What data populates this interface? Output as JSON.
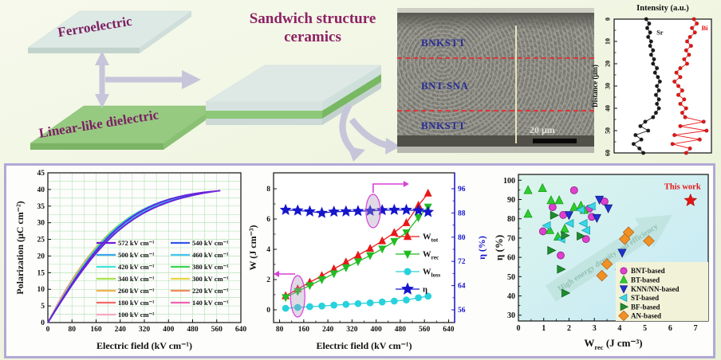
{
  "schematic": {
    "layer_top": "Ferroelectric",
    "layer_bottom": "Linear-like dielectric",
    "title_line1": "Sandwich structure",
    "title_line2": "ceramics"
  },
  "sem": {
    "labels": [
      "BNKSTT",
      "BNT-SNA",
      "BNKSTT"
    ],
    "scale_bar": "20 μm"
  },
  "chart_data": [
    {
      "id": "line_scan",
      "type": "line",
      "title": "Intensity (a.u.)",
      "ylabel": "Distance (μm)",
      "yticks": [
        0,
        10,
        20,
        30,
        40,
        50,
        60
      ],
      "ylim": [
        0,
        60
      ],
      "series": [
        {
          "name": "Sr",
          "color": "#1a1a1a",
          "points": [
            [
              0.33,
              0
            ],
            [
              0.36,
              2
            ],
            [
              0.34,
              4
            ],
            [
              0.37,
              6
            ],
            [
              0.35,
              8
            ],
            [
              0.38,
              10
            ],
            [
              0.37,
              12
            ],
            [
              0.4,
              14
            ],
            [
              0.38,
              16
            ],
            [
              0.41,
              18
            ],
            [
              0.4,
              20
            ],
            [
              0.44,
              22
            ],
            [
              0.42,
              24
            ],
            [
              0.45,
              26
            ],
            [
              0.47,
              28
            ],
            [
              0.44,
              30
            ],
            [
              0.46,
              32
            ],
            [
              0.43,
              34
            ],
            [
              0.46,
              36
            ],
            [
              0.44,
              38
            ],
            [
              0.46,
              40
            ],
            [
              0.43,
              42
            ],
            [
              0.4,
              44
            ],
            [
              0.32,
              46
            ],
            [
              0.27,
              48
            ],
            [
              0.35,
              50
            ],
            [
              0.22,
              52
            ],
            [
              0.28,
              54
            ],
            [
              0.2,
              56
            ],
            [
              0.26,
              58
            ],
            [
              0.3,
              60
            ]
          ]
        },
        {
          "name": "Bi",
          "color": "#e81515",
          "points": [
            [
              0.82,
              0
            ],
            [
              0.85,
              2
            ],
            [
              0.8,
              4
            ],
            [
              0.83,
              6
            ],
            [
              0.78,
              8
            ],
            [
              0.75,
              10
            ],
            [
              0.79,
              12
            ],
            [
              0.74,
              14
            ],
            [
              0.77,
              16
            ],
            [
              0.72,
              18
            ],
            [
              0.75,
              20
            ],
            [
              0.68,
              22
            ],
            [
              0.64,
              24
            ],
            [
              0.68,
              26
            ],
            [
              0.62,
              28
            ],
            [
              0.66,
              30
            ],
            [
              0.7,
              32
            ],
            [
              0.66,
              34
            ],
            [
              0.72,
              36
            ],
            [
              0.68,
              38
            ],
            [
              0.74,
              40
            ],
            [
              0.7,
              42
            ],
            [
              0.73,
              44
            ],
            [
              0.92,
              46
            ],
            [
              0.68,
              48
            ],
            [
              0.95,
              50
            ],
            [
              0.62,
              52
            ],
            [
              0.88,
              54
            ],
            [
              0.6,
              56
            ],
            [
              0.78,
              58
            ],
            [
              0.74,
              60
            ]
          ]
        }
      ]
    },
    {
      "id": "pe_loops",
      "type": "line",
      "xlabel": "Electric field (kV cm⁻¹)",
      "ylabel": "Polarization (μC cm⁻²)",
      "xlim": [
        0,
        640
      ],
      "ylim": [
        0,
        45
      ],
      "xticks": [
        0,
        80,
        160,
        240,
        320,
        400,
        480,
        560,
        640
      ],
      "yticks": [
        0,
        5,
        10,
        15,
        20,
        25,
        30,
        35,
        40,
        45
      ],
      "grid": true,
      "saturation_polarization": 41,
      "loops": [
        {
          "field": 572,
          "color": "#6d1fd8",
          "label": "572 kV cm⁻¹"
        },
        {
          "field": 540,
          "color": "#2f55e8",
          "label": "540 kV cm⁻¹"
        },
        {
          "field": 500,
          "color": "#3fa6ee",
          "label": "500 kV cm⁻¹"
        },
        {
          "field": 460,
          "color": "#46c6f2",
          "label": "460 kV cm⁻¹"
        },
        {
          "field": 420,
          "color": "#3fe3d9",
          "label": "420 kV cm⁻¹"
        },
        {
          "field": 380,
          "color": "#3dd44f",
          "label": "380 kV cm⁻¹"
        },
        {
          "field": 340,
          "color": "#a6e34e",
          "label": "340 kV cm⁻¹"
        },
        {
          "field": 300,
          "color": "#e8d447",
          "label": "300 kV cm⁻¹"
        },
        {
          "field": 260,
          "color": "#f2b24e",
          "label": "260 kV cm⁻¹"
        },
        {
          "field": 220,
          "color": "#f28a5a",
          "label": "220 kV cm⁻¹"
        },
        {
          "field": 180,
          "color": "#f26a6a",
          "label": "180 kV cm⁻¹"
        },
        {
          "field": 140,
          "color": "#ef63b0",
          "label": "140 kV cm⁻¹"
        },
        {
          "field": 100,
          "color": "#f7a8c4",
          "label": "100 kV cm⁻¹"
        }
      ]
    },
    {
      "id": "energy",
      "type": "line",
      "xlabel": "Electric field (kV cm⁻¹)",
      "ylabel_left": "W (J cm⁻³)",
      "ylabel_right": "η (%)",
      "xticks": [
        80,
        160,
        240,
        320,
        400,
        480,
        560,
        640
      ],
      "yticks_left": [
        0,
        2,
        4,
        6,
        8
      ],
      "yticks_right": [
        56,
        64,
        72,
        80,
        88,
        96
      ],
      "fields": [
        100,
        140,
        180,
        220,
        260,
        300,
        340,
        380,
        420,
        460,
        500,
        540,
        572
      ],
      "series": [
        {
          "name_main": "W",
          "name_sub": "tot",
          "color": "#e81818",
          "marker": "tri-up",
          "axis": "left",
          "values": [
            0.92,
            1.38,
            1.82,
            2.25,
            2.7,
            3.15,
            3.6,
            4.05,
            4.55,
            5.1,
            5.75,
            6.9,
            7.7
          ]
        },
        {
          "name_main": "W",
          "name_sub": "rec",
          "color": "#22bb22",
          "marker": "tri-down",
          "axis": "left",
          "values": [
            0.82,
            1.22,
            1.61,
            2.0,
            2.39,
            2.79,
            3.19,
            3.59,
            4.03,
            4.52,
            5.1,
            6.1,
            6.8
          ]
        },
        {
          "name_main": "W",
          "name_sub": "loss",
          "color": "#28d2dc",
          "marker": "circle",
          "axis": "left",
          "values": [
            0.1,
            0.16,
            0.21,
            0.25,
            0.31,
            0.36,
            0.41,
            0.46,
            0.52,
            0.58,
            0.65,
            0.8,
            0.9
          ]
        },
        {
          "name_main": "η",
          "name_sub": "",
          "color": "#1515cc",
          "marker": "star",
          "axis": "right",
          "values": [
            89,
            88.8,
            88.5,
            88,
            88.4,
            88.5,
            88.6,
            88.7,
            88.9,
            89,
            89,
            88.8,
            88.3
          ]
        }
      ]
    },
    {
      "id": "comparison",
      "type": "scatter",
      "xlabel_parts": [
        "W",
        "rec",
        " (J cm⁻³)"
      ],
      "ylabel": "η (%)",
      "xticks": [
        0,
        1,
        2,
        3,
        4,
        5,
        6,
        7
      ],
      "yticks": [
        30,
        40,
        50,
        60,
        70,
        80,
        90,
        100
      ],
      "xlim": [
        0,
        7.5
      ],
      "ylim": [
        27,
        103
      ],
      "watermark": "High energy density and efficiency",
      "this_work": {
        "label": "This work",
        "x": 6.8,
        "y": 89.5,
        "color": "#e81414"
      },
      "series": [
        {
          "name": "BNT-based",
          "marker": "circle",
          "color": "#e03fd0",
          "edge": "#8a1f80",
          "points": [
            [
              2.2,
              94.8
            ],
            [
              1.35,
              86
            ],
            [
              1.77,
              82
            ],
            [
              2.8,
              85.3
            ],
            [
              0.97,
              73.5
            ],
            [
              1.67,
              61
            ],
            [
              3.4,
              89
            ],
            [
              2.9,
              81
            ],
            [
              2.67,
              69.5
            ]
          ]
        },
        {
          "name": "BT-based",
          "marker": "tri-up",
          "color": "#2ecc2e",
          "edge": "#149314",
          "points": [
            [
              0.38,
              94.8
            ],
            [
              0.95,
              95.8
            ],
            [
              1.29,
              89.5
            ],
            [
              1.61,
              89.5
            ],
            [
              0.38,
              82.5
            ],
            [
              2.2,
              86
            ],
            [
              2.47,
              86.7
            ],
            [
              1.24,
              74
            ],
            [
              1.56,
              70.6
            ],
            [
              1.83,
              74.8
            ],
            [
              2.6,
              84.5
            ]
          ]
        },
        {
          "name": "KNN/NN-based",
          "marker": "tri-down",
          "color": "#2033cc",
          "edge": "#101a80",
          "points": [
            [
              3.2,
              90
            ],
            [
              3.55,
              85.5
            ],
            [
              2.0,
              82
            ],
            [
              3.1,
              80.5
            ],
            [
              4.1,
              62.5
            ],
            [
              4.0,
              52
            ]
          ]
        },
        {
          "name": "ST-based",
          "marker": "tri-left",
          "color": "#37d8e8",
          "edge": "#1898a8",
          "points": [
            [
              2.47,
              84.6
            ],
            [
              2.04,
              77.6
            ],
            [
              2.58,
              77.6
            ],
            [
              2.69,
              74
            ],
            [
              1.13,
              76.5
            ],
            [
              1.7,
              69.5
            ],
            [
              2.9,
              86.5
            ]
          ]
        },
        {
          "name": "BF-based",
          "marker": "tri-right",
          "color": "#1f8c2f",
          "edge": "#0f5c1a",
          "points": [
            [
              1.4,
              81.8
            ],
            [
              1.83,
              71.3
            ],
            [
              1.29,
              63.6
            ],
            [
              1.67,
              53.8
            ],
            [
              1.85,
              41.5
            ],
            [
              2.45,
              71
            ]
          ]
        },
        {
          "name": "AN-based",
          "marker": "diamond",
          "color": "#f09125",
          "edge": "#b05f10",
          "points": [
            [
              4.35,
              73
            ],
            [
              4.2,
              69.5
            ],
            [
              5.15,
              68.5
            ],
            [
              3.5,
              56.5
            ],
            [
              3.3,
              50.5
            ]
          ]
        }
      ]
    }
  ]
}
